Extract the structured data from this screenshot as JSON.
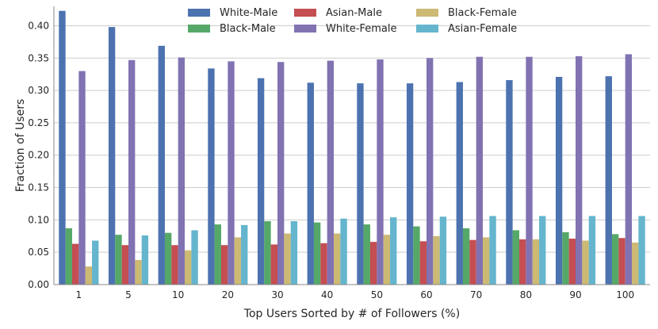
{
  "chart_data": {
    "type": "bar",
    "title": "",
    "xlabel": "Top Users Sorted by # of Followers (%)",
    "ylabel": "Fraction of Users",
    "ylim": [
      0,
      0.43
    ],
    "yticks": [
      "0.00",
      "0.05",
      "0.10",
      "0.15",
      "0.20",
      "0.25",
      "0.30",
      "0.35",
      "0.40"
    ],
    "grid": true,
    "legend_position": "top-center",
    "categories": [
      "1",
      "5",
      "10",
      "20",
      "30",
      "40",
      "50",
      "60",
      "70",
      "80",
      "90",
      "100"
    ],
    "series": [
      {
        "name": "White-Male",
        "color": "#4c72b0",
        "values": [
          0.423,
          0.398,
          0.369,
          0.334,
          0.319,
          0.312,
          0.311,
          0.311,
          0.313,
          0.316,
          0.321,
          0.322
        ]
      },
      {
        "name": "Black-Male",
        "color": "#55a868",
        "values": [
          0.087,
          0.077,
          0.08,
          0.093,
          0.098,
          0.096,
          0.093,
          0.09,
          0.087,
          0.084,
          0.081,
          0.078
        ]
      },
      {
        "name": "Asian-Male",
        "color": "#c44e52",
        "values": [
          0.063,
          0.061,
          0.061,
          0.061,
          0.062,
          0.064,
          0.066,
          0.067,
          0.069,
          0.07,
          0.071,
          0.072
        ]
      },
      {
        "name": "White-Female",
        "color": "#8172b2",
        "values": [
          0.33,
          0.347,
          0.351,
          0.345,
          0.344,
          0.346,
          0.348,
          0.35,
          0.352,
          0.352,
          0.353,
          0.356
        ]
      },
      {
        "name": "Black-Female",
        "color": "#ccb974",
        "values": [
          0.028,
          0.038,
          0.053,
          0.073,
          0.079,
          0.079,
          0.077,
          0.075,
          0.073,
          0.07,
          0.068,
          0.065
        ]
      },
      {
        "name": "Asian-Female",
        "color": "#64b5cd",
        "values": [
          0.068,
          0.076,
          0.084,
          0.092,
          0.098,
          0.102,
          0.104,
          0.105,
          0.106,
          0.106,
          0.106,
          0.106
        ]
      }
    ]
  }
}
